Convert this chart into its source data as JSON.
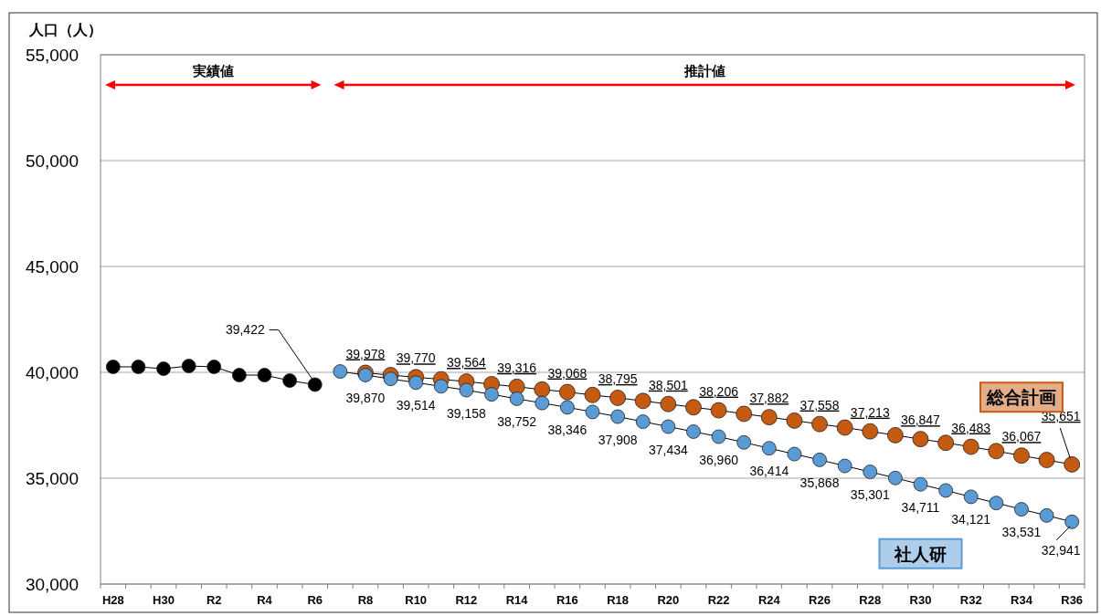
{
  "chart_data": {
    "type": "line",
    "ylabel": "人口（人）",
    "categories": [
      "H28",
      null,
      "H30",
      null,
      "R2",
      null,
      "R4",
      null,
      "R6",
      null,
      "R8",
      null,
      "R10",
      null,
      "R12",
      null,
      "R14",
      null,
      "R16",
      null,
      "R18",
      null,
      "R20",
      null,
      "R22",
      null,
      "R24",
      null,
      "R26",
      null,
      "R28",
      null,
      "R30",
      null,
      "R32",
      null,
      "R34",
      null,
      "R36"
    ],
    "ylim": [
      30000,
      55000
    ],
    "yticks": [
      {
        "value": 30000,
        "label": "30,000"
      },
      {
        "value": 35000,
        "label": "35,000"
      },
      {
        "value": 40000,
        "label": "40,000"
      },
      {
        "value": 45000,
        "label": "45,000"
      },
      {
        "value": 50000,
        "label": "50,000"
      },
      {
        "value": 55000,
        "label": "55,000"
      }
    ],
    "grid": "y",
    "marker": "circle",
    "line_style": "solid",
    "annotations": [
      "実績値",
      "推計値"
    ],
    "series": [
      {
        "color": "#000000",
        "values": [
          40260,
          40260,
          40170,
          40300,
          40260,
          39870,
          39870,
          39610,
          39422,
          null,
          null,
          null,
          null,
          null,
          null,
          null,
          null,
          null,
          null,
          null,
          null,
          null,
          null,
          null,
          null,
          null,
          null,
          null,
          null,
          null,
          null,
          null,
          null,
          null,
          null,
          null,
          null,
          null,
          null
        ],
        "value_labels": [
          null,
          null,
          null,
          null,
          null,
          null,
          null,
          null,
          "39,422",
          null,
          null,
          null,
          null,
          null,
          null,
          null,
          null,
          null,
          null,
          null,
          null,
          null,
          null,
          null,
          null,
          null,
          null,
          null,
          null,
          null,
          null,
          null,
          null,
          null,
          null,
          null,
          null,
          null,
          null
        ]
      },
      {
        "name": "総合計画",
        "color": "#c55a11",
        "values": [
          null,
          null,
          null,
          null,
          null,
          null,
          null,
          null,
          null,
          null,
          39978,
          39870,
          39770,
          39670,
          39564,
          39440,
          39316,
          39190,
          39068,
          38930,
          38795,
          38650,
          38501,
          38350,
          38206,
          38040,
          37882,
          37720,
          37558,
          37390,
          37213,
          37030,
          36847,
          36670,
          36483,
          36280,
          36067,
          35860,
          35651
        ],
        "value_labels": [
          null,
          null,
          null,
          null,
          null,
          null,
          null,
          null,
          null,
          null,
          "39,978",
          null,
          "39,770",
          null,
          "39,564",
          null,
          "39,316",
          null,
          "39,068",
          null,
          "38,795",
          null,
          "38,501",
          null,
          "38,206",
          null,
          "37,882",
          null,
          "37,558",
          null,
          "37,213",
          null,
          "36,847",
          null,
          "36,483",
          null,
          "36,067",
          null,
          "35,651"
        ]
      },
      {
        "name": "社人研",
        "color": "#5b9bd5",
        "values": [
          null,
          null,
          null,
          null,
          null,
          null,
          null,
          null,
          null,
          40040,
          39870,
          39690,
          39514,
          39340,
          39158,
          38960,
          38752,
          38550,
          38346,
          38130,
          37908,
          37670,
          37434,
          37200,
          36960,
          36690,
          36414,
          36140,
          35868,
          35580,
          35301,
          35010,
          34711,
          34420,
          34121,
          33830,
          33531,
          33240,
          32941
        ],
        "value_labels": [
          null,
          null,
          null,
          null,
          null,
          null,
          null,
          null,
          null,
          null,
          "39,870",
          null,
          "39,514",
          null,
          "39,158",
          null,
          "38,752",
          null,
          "38,346",
          null,
          "37,908",
          null,
          "37,434",
          null,
          "36,960",
          null,
          "36,414",
          null,
          "35,868",
          null,
          "35,301",
          null,
          "34,711",
          null,
          "34,121",
          null,
          "33,531",
          null,
          "32,941"
        ]
      }
    ]
  }
}
